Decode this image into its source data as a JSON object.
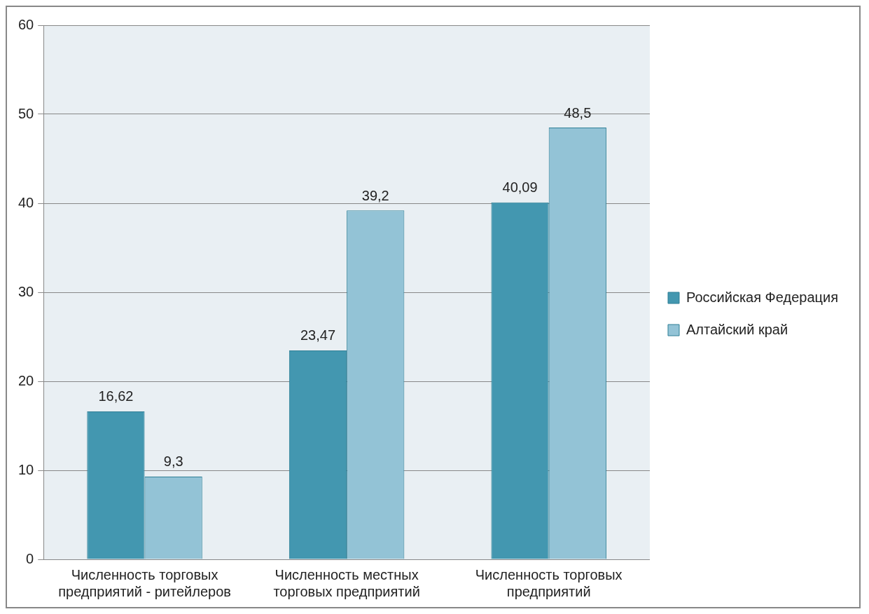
{
  "chart_data": {
    "type": "bar",
    "categories": [
      "Численность торговых предприятий - ритейлеров",
      "Численность местных торговых предприятий",
      "Численность торговых предприятий"
    ],
    "series": [
      {
        "name": "Российская Федерация",
        "color": "#4397b0",
        "values": [
          16.62,
          23.47,
          40.09
        ]
      },
      {
        "name": "Алтайский край",
        "color": "#93c3d6",
        "values": [
          9.3,
          39.2,
          48.5
        ]
      }
    ],
    "value_labels": [
      [
        "16,62",
        "23,47",
        "40,09"
      ],
      [
        "9,3",
        "39,2",
        "48,5"
      ]
    ],
    "ylim": [
      0,
      60
    ],
    "yticks": [
      0,
      10,
      20,
      30,
      40,
      50,
      60
    ],
    "grid": "y",
    "legend": "right"
  }
}
